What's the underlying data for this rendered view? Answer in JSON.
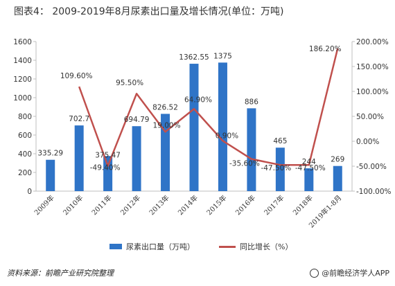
{
  "title": "图表4：  2009-2019年8月尿素出口量及增长情况(单位：万吨)",
  "source": "资料来源：前瞻产业研究院整理",
  "brand": "@前瞻经济学人APP",
  "chart_data": {
    "type": "bar+line",
    "categories": [
      "2009年",
      "2010年",
      "2011年",
      "2012年",
      "2013年",
      "2014年",
      "2015年",
      "2016年",
      "2017年",
      "2018年",
      "2019年1-8月"
    ],
    "series": [
      {
        "name": "尿素出口量（万吨）",
        "type": "bar",
        "axis": "left",
        "color": "#2f74c7",
        "values": [
          335.29,
          702.7,
          375.47,
          694.79,
          826.52,
          1362.55,
          1375,
          886,
          465,
          244,
          269
        ],
        "labels": [
          "335.29",
          "702.7",
          "375.47",
          "694.79",
          "826.52",
          "1362.55",
          "1375",
          "886",
          "465",
          "244",
          "269"
        ]
      },
      {
        "name": "同比增长（%）",
        "type": "line",
        "axis": "right",
        "color": "#c0504d",
        "values": [
          null,
          109.6,
          -49.4,
          95.5,
          19.0,
          64.9,
          0.9,
          -35.6,
          -47.5,
          -47.5,
          186.2
        ],
        "labels": [
          "",
          "109.60%",
          "-49.40%",
          "95.50%",
          "19.00%",
          "64.90%",
          "0.90%",
          "-35.60%",
          "-47.50%",
          "-47.50%",
          "186.20%"
        ]
      }
    ],
    "y_left": {
      "min": 0,
      "max": 1600,
      "ticks": [
        0,
        200,
        400,
        600,
        800,
        1000,
        1200,
        1400,
        1600
      ],
      "tick_labels": [
        "0",
        "200",
        "400",
        "600",
        "800",
        "1000",
        "1200",
        "1400",
        "1600"
      ]
    },
    "y_right": {
      "min": -100,
      "max": 200,
      "ticks": [
        -100,
        -50,
        0,
        50,
        100,
        150,
        200
      ],
      "tick_labels": [
        "-100.00%",
        "-50.00%",
        "0.00%",
        "50.00%",
        "100.00%",
        "150.00%",
        "200.00%"
      ]
    },
    "grid": false,
    "legend": "bottom"
  }
}
